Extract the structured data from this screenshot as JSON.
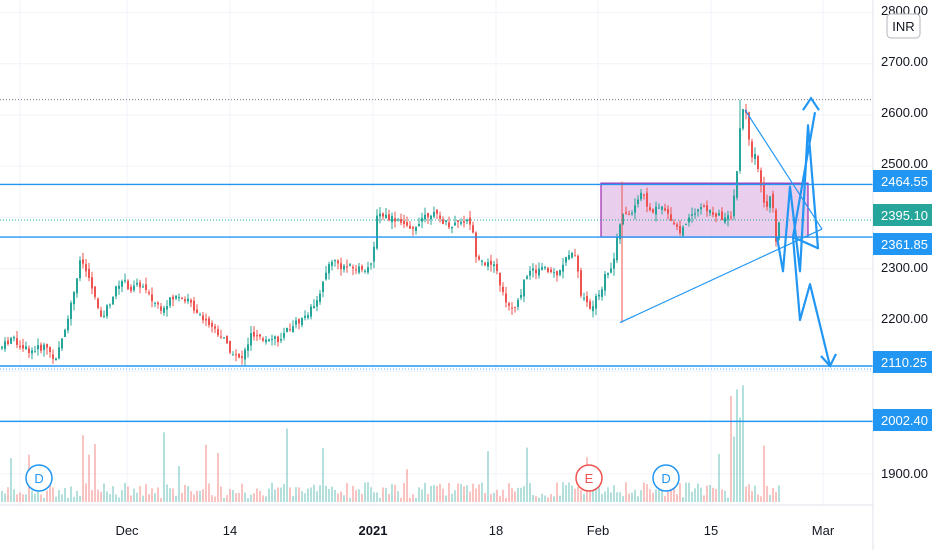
{
  "currency": "INR",
  "colors": {
    "up": "#26a69a",
    "down": "#ef5350",
    "level": "#2196f3",
    "box_fill": "#e1bee7",
    "box_stroke": "#9c27b0",
    "price_tag": "#26a69a"
  },
  "y_axis": {
    "ticks": [
      "2800.00",
      "2700.00",
      "2600.00",
      "2500.00",
      "2300.00",
      "2200.00",
      "1900.00"
    ],
    "tick_values": [
      2800,
      2700,
      2600,
      2500,
      2300,
      2200,
      1900
    ]
  },
  "x_axis": {
    "labels": [
      {
        "text": "Dec",
        "bold": false
      },
      {
        "text": "14",
        "bold": false
      },
      {
        "text": "2021",
        "bold": true
      },
      {
        "text": "18",
        "bold": false
      },
      {
        "text": "Feb",
        "bold": false
      },
      {
        "text": "15",
        "bold": false
      },
      {
        "text": "Mar",
        "bold": false
      }
    ]
  },
  "level_labels": [
    {
      "text": "2464.55",
      "value": 2464.55
    },
    {
      "text": "2395.10",
      "value": 2395.1,
      "current": true
    },
    {
      "text": "2361.85",
      "value": 2361.85
    },
    {
      "text": "2110.25",
      "value": 2110.25
    },
    {
      "text": "2002.40",
      "value": 2002.4
    }
  ],
  "event_markers": [
    {
      "text": "D",
      "type": "dividend"
    },
    {
      "text": "E",
      "type": "earnings"
    },
    {
      "text": "D",
      "type": "dividend"
    }
  ],
  "chart_data": {
    "type": "candlestick",
    "ylim": [
      1850,
      2820
    ],
    "grid": true,
    "price_path": [
      [
        0,
        2145
      ],
      [
        10,
        2165
      ],
      [
        20,
        2150
      ],
      [
        30,
        2140
      ],
      [
        45,
        2150
      ],
      [
        55,
        2120
      ],
      [
        70,
        2230
      ],
      [
        80,
        2320
      ],
      [
        90,
        2270
      ],
      [
        100,
        2200
      ],
      [
        110,
        2240
      ],
      [
        120,
        2280
      ],
      [
        130,
        2260
      ],
      [
        140,
        2270
      ],
      [
        150,
        2240
      ],
      [
        160,
        2225
      ],
      [
        170,
        2240
      ],
      [
        180,
        2250
      ],
      [
        190,
        2230
      ],
      [
        200,
        2210
      ],
      [
        210,
        2190
      ],
      [
        220,
        2170
      ],
      [
        230,
        2140
      ],
      [
        240,
        2120
      ],
      [
        250,
        2170
      ],
      [
        260,
        2160
      ],
      [
        270,
        2170
      ],
      [
        280,
        2160
      ],
      [
        290,
        2190
      ],
      [
        300,
        2200
      ],
      [
        310,
        2220
      ],
      [
        320,
        2260
      ],
      [
        330,
        2320
      ],
      [
        340,
        2305
      ],
      [
        355,
        2300
      ],
      [
        372,
        2305
      ],
      [
        375,
        2410
      ],
      [
        390,
        2400
      ],
      [
        400,
        2395
      ],
      [
        410,
        2370
      ],
      [
        420,
        2400
      ],
      [
        430,
        2410
      ],
      [
        440,
        2395
      ],
      [
        450,
        2385
      ],
      [
        460,
        2395
      ],
      [
        470,
        2390
      ],
      [
        475,
        2330
      ],
      [
        485,
        2310
      ],
      [
        495,
        2300
      ],
      [
        505,
        2230
      ],
      [
        515,
        2220
      ],
      [
        525,
        2290
      ],
      [
        540,
        2300
      ],
      [
        555,
        2290
      ],
      [
        565,
        2320
      ],
      [
        575,
        2330
      ],
      [
        580,
        2250
      ],
      [
        590,
        2220
      ],
      [
        600,
        2260
      ],
      [
        605,
        2290
      ],
      [
        612,
        2310
      ],
      [
        620,
        2400
      ],
      [
        630,
        2410
      ],
      [
        640,
        2450
      ],
      [
        650,
        2410
      ],
      [
        660,
        2420
      ],
      [
        670,
        2400
      ],
      [
        680,
        2370
      ],
      [
        690,
        2410
      ],
      [
        700,
        2420
      ],
      [
        710,
        2410
      ],
      [
        720,
        2400
      ],
      [
        730,
        2400
      ],
      [
        737,
        2500
      ],
      [
        740,
        2610
      ],
      [
        745,
        2600
      ],
      [
        750,
        2510
      ],
      [
        755,
        2520
      ],
      [
        760,
        2460
      ],
      [
        765,
        2420
      ],
      [
        770,
        2450
      ],
      [
        775,
        2360
      ],
      [
        778,
        2395
      ]
    ],
    "levels": [
      2464.55,
      2395.1,
      2361.85,
      2110.25,
      2002.4
    ],
    "high_marker": 2630,
    "range_box": {
      "top": 2467,
      "bottom": 2361.85
    },
    "triangle": {
      "apex": 2361.85,
      "upper_start": 2610,
      "lower_start": 2195
    },
    "projection_path": [
      2361.85,
      2295,
      2460,
      2295,
      2580,
      2340,
      2361.85,
      2200,
      2270,
      2110.25
    ],
    "projection_up_target": 2625
  }
}
